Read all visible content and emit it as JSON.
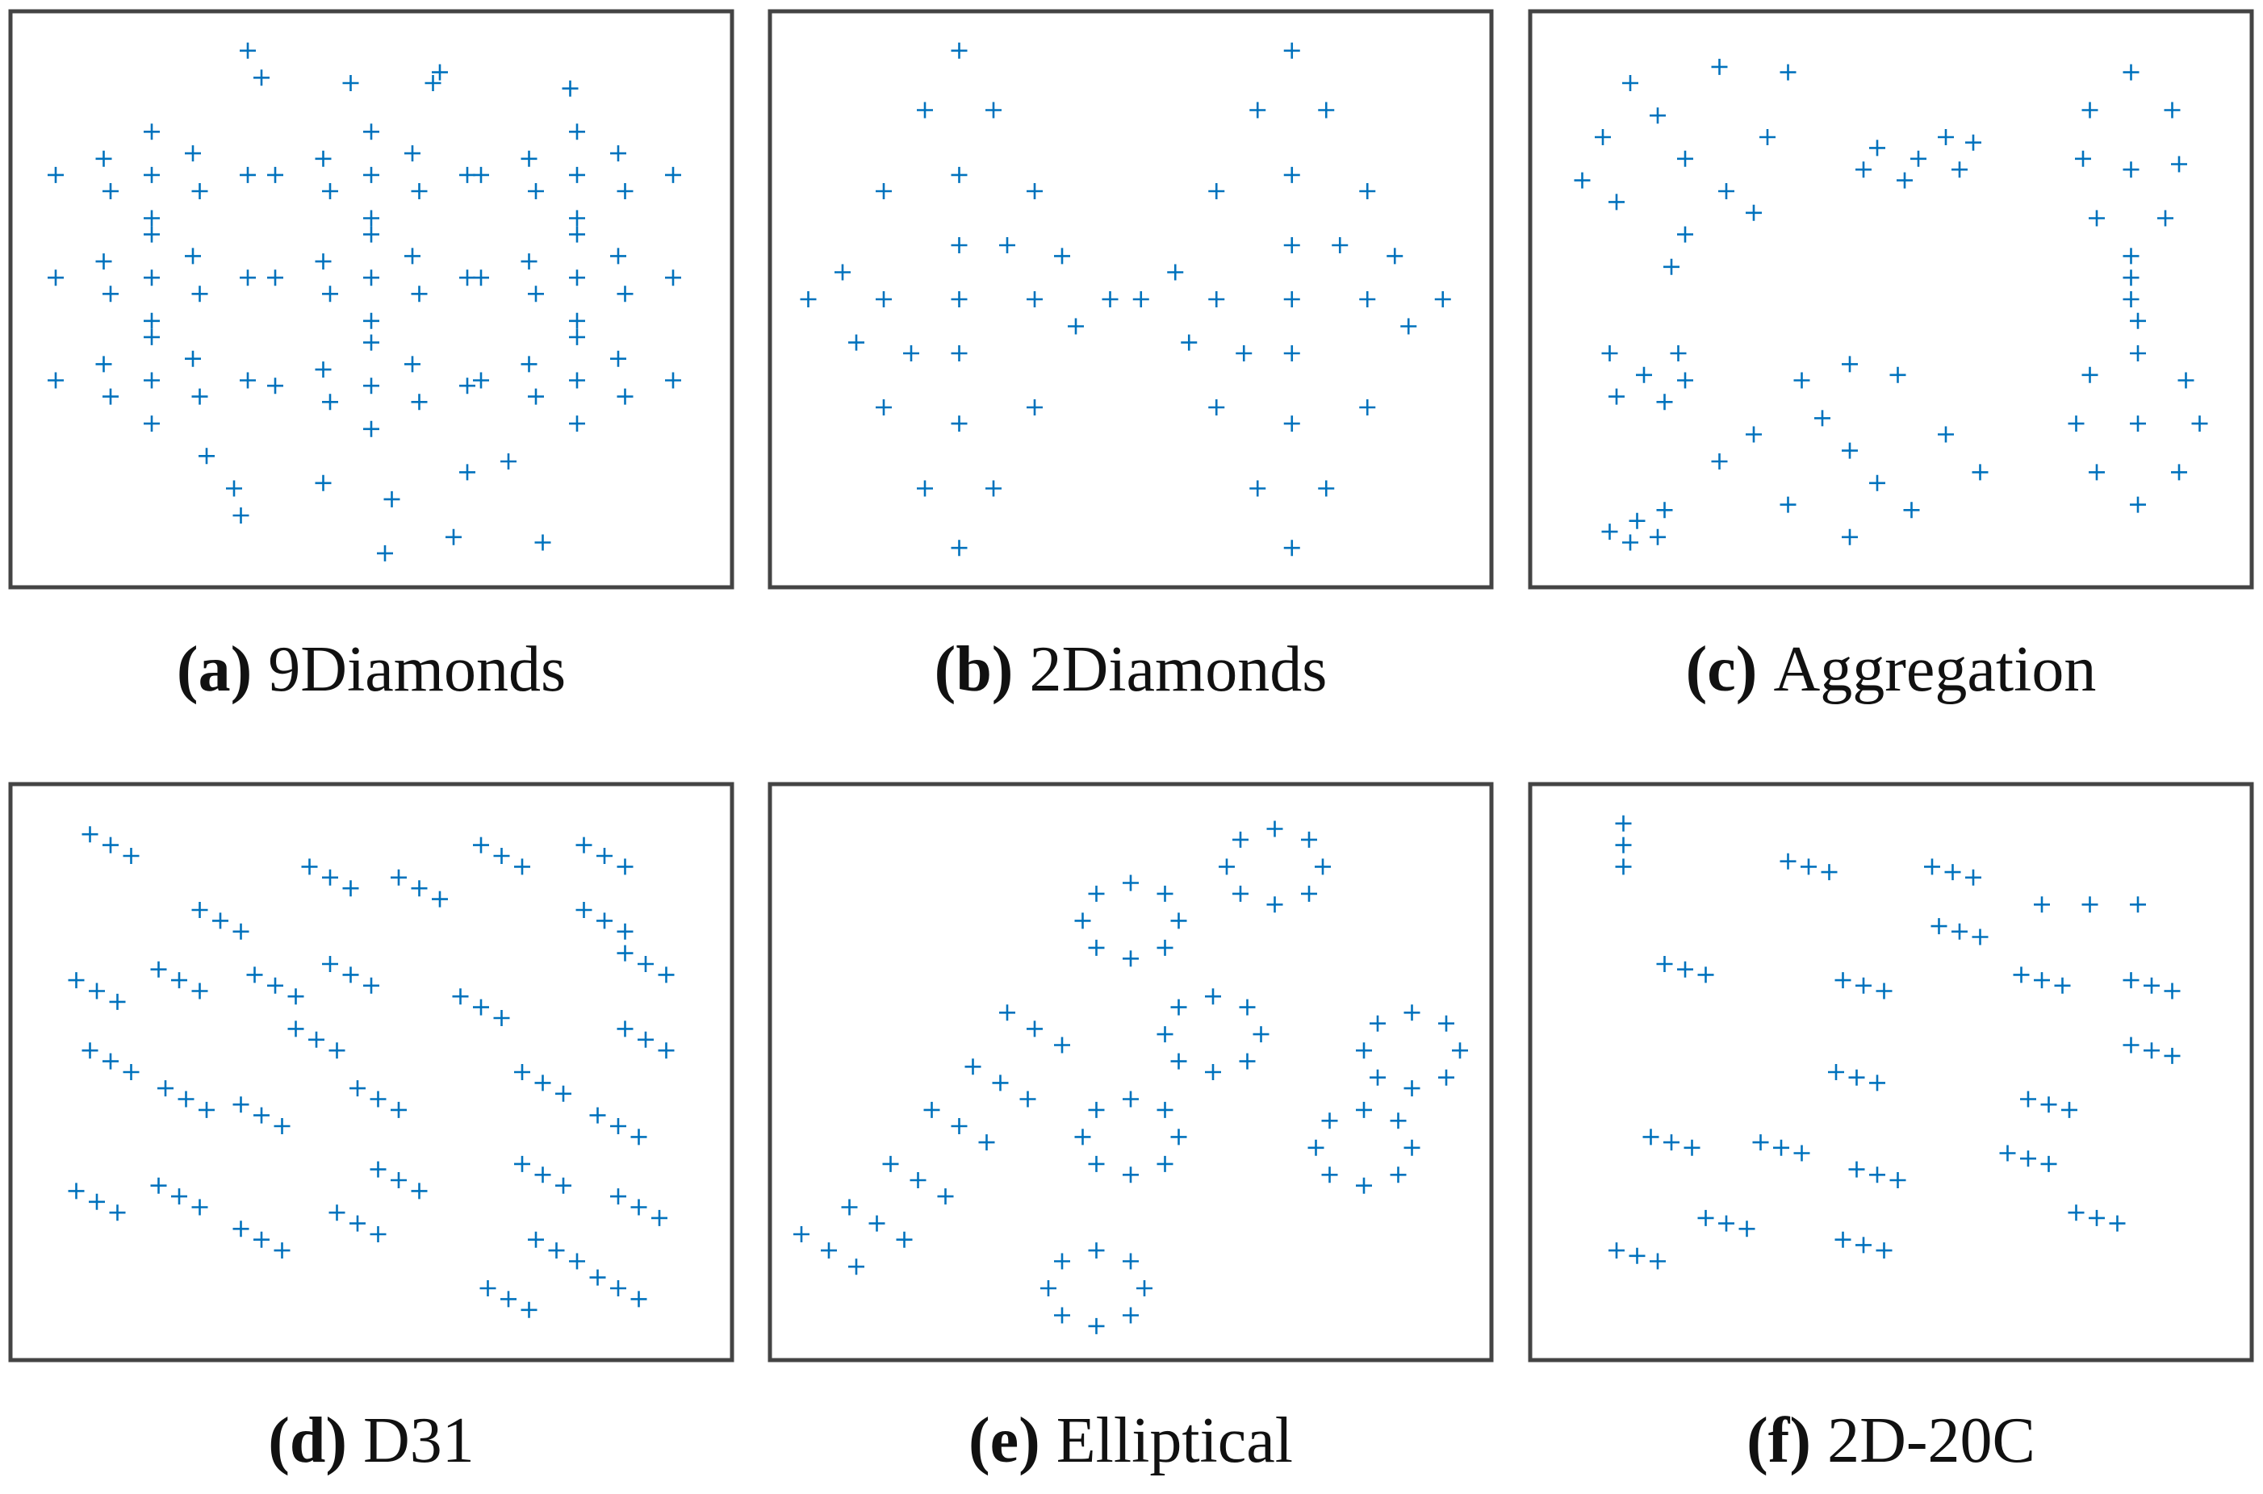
{
  "chart_data": [
    {
      "type": "scatter",
      "label": "(a)",
      "title": "9Diamonds",
      "color": "#0072bd",
      "xlim": [
        0,
        100
      ],
      "ylim": [
        0,
        100
      ],
      "x": [
        18,
        4,
        32,
        18,
        18,
        11,
        25,
        12,
        24,
        50,
        36,
        64,
        50,
        50,
        43,
        57,
        44,
        56,
        80,
        66,
        94,
        80,
        80,
        73,
        87,
        74,
        86,
        18,
        4,
        32,
        18,
        18,
        11,
        25,
        12,
        24,
        50,
        36,
        64,
        50,
        50,
        43,
        57,
        44,
        56,
        80,
        66,
        94,
        80,
        80,
        73,
        87,
        74,
        86,
        18,
        4,
        32,
        18,
        18,
        11,
        25,
        12,
        24,
        50,
        36,
        64,
        50,
        50,
        43,
        57,
        44,
        56,
        80,
        66,
        94,
        80,
        80,
        73,
        87,
        74,
        86,
        32,
        34,
        47,
        59,
        60,
        79,
        26,
        30,
        43,
        53,
        64,
        70,
        62,
        52,
        75,
        31
      ],
      "values": [
        73,
        73,
        73,
        81,
        65,
        76,
        70,
        70,
        77,
        73,
        73,
        73,
        81,
        65,
        76,
        70,
        70,
        77,
        73,
        73,
        73,
        81,
        65,
        76,
        70,
        70,
        77,
        54,
        54,
        54,
        62,
        46,
        57,
        51,
        51,
        58,
        54,
        54,
        54,
        62,
        46,
        57,
        51,
        51,
        58,
        54,
        54,
        54,
        62,
        46,
        57,
        51,
        51,
        58,
        35,
        35,
        35,
        43,
        27,
        38,
        32,
        32,
        39,
        34,
        34,
        34,
        42,
        26,
        37,
        31,
        31,
        38,
        35,
        35,
        35,
        43,
        27,
        38,
        32,
        32,
        39,
        96,
        91,
        90,
        90,
        92,
        89,
        21,
        15,
        16,
        13,
        18,
        20,
        6,
        3,
        5,
        10
      ]
    },
    {
      "type": "scatter",
      "label": "(b)",
      "title": "2Diamonds",
      "color": "#0072bd",
      "xlim": [
        0,
        100
      ],
      "ylim": [
        0,
        100
      ],
      "x": [
        25,
        3,
        47,
        25,
        25,
        14,
        36,
        25,
        25,
        14,
        36,
        14,
        36,
        20,
        30,
        20,
        30,
        8,
        42,
        18,
        32,
        25,
        25,
        10,
        40,
        73.5,
        51.5,
        95.5,
        73.5,
        73.5,
        62.5,
        84.5,
        73.5,
        73.5,
        62.5,
        84.5,
        62.5,
        84.5,
        68.5,
        78.5,
        68.5,
        78.5,
        56.5,
        90.5,
        66.5,
        80.5,
        73.5,
        73.5,
        58.5,
        88.5
      ],
      "values": [
        50,
        50,
        50,
        96,
        4,
        50,
        50,
        73,
        27,
        70,
        70,
        30,
        30,
        85,
        85,
        15,
        15,
        55,
        45,
        40,
        60,
        60,
        40,
        42,
        58,
        50,
        50,
        50,
        96,
        4,
        50,
        50,
        73,
        27,
        70,
        70,
        30,
        30,
        85,
        85,
        15,
        15,
        55,
        45,
        40,
        60,
        60,
        40,
        42,
        58
      ]
    },
    {
      "type": "scatter",
      "label": "(c)",
      "title": "Aggregation",
      "color": "#0072bd",
      "xlim": [
        0,
        100
      ],
      "ylim": [
        0,
        100
      ],
      "x": [
        20,
        8,
        32,
        12,
        25,
        10,
        20,
        30,
        16,
        26,
        35,
        18,
        5,
        54,
        48,
        60,
        52,
        58,
        46,
        62,
        85,
        79,
        91,
        80,
        90,
        85,
        85,
        78,
        92,
        85,
        86,
        85,
        86,
        79,
        93,
        80,
        92,
        86,
        86,
        77,
        95,
        14,
        9,
        19,
        10,
        17,
        20,
        44,
        30,
        58,
        37,
        51,
        35,
        53,
        44,
        44,
        25,
        63,
        40,
        48,
        13,
        9,
        17,
        12,
        16
      ],
      "values": [
        76,
        80,
        80,
        90,
        93,
        68,
        62,
        66,
        84,
        70,
        92,
        56,
        72,
        76,
        78,
        74,
        72,
        80,
        74,
        79,
        74,
        85,
        85,
        65,
        65,
        92,
        58,
        76,
        75,
        50,
        46,
        54,
        27,
        36,
        35,
        18,
        18,
        40,
        12,
        27,
        27,
        36,
        40,
        40,
        32,
        31,
        35,
        22,
        25,
        25,
        35,
        36,
        12,
        11,
        6,
        38,
        20,
        18,
        28,
        16,
        9,
        7,
        11,
        5,
        6
      ]
    },
    {
      "type": "scatter",
      "label": "(d)",
      "title": "D31",
      "color": "#0072bd",
      "xlim": [
        0,
        100
      ],
      "ylim": [
        0,
        100
      ],
      "x": [
        12,
        9,
        15,
        44,
        41,
        47,
        57,
        54,
        60,
        69,
        66,
        72,
        84,
        81,
        87,
        28,
        25,
        31,
        84,
        81,
        87,
        90,
        87,
        93,
        10,
        7,
        13,
        22,
        19,
        25,
        36,
        33,
        39,
        47,
        44,
        50,
        66,
        63,
        69,
        42,
        39,
        45,
        12,
        9,
        15,
        23,
        20,
        26,
        34,
        31,
        37,
        51,
        48,
        54,
        90,
        87,
        93,
        75,
        72,
        78,
        86,
        83,
        89,
        10,
        7,
        13,
        22,
        19,
        25,
        34,
        31,
        37,
        48,
        45,
        51,
        54,
        51,
        57,
        75,
        72,
        78,
        89,
        86,
        92,
        77,
        74,
        80,
        70,
        67,
        73,
        86,
        83,
        89
      ],
      "values": [
        92,
        94,
        90,
        86,
        88,
        84,
        84,
        86,
        82,
        90,
        92,
        88,
        90,
        92,
        88,
        78,
        80,
        76,
        78,
        80,
        76,
        70,
        72,
        68,
        65,
        67,
        63,
        67,
        69,
        65,
        66,
        68,
        64,
        68,
        70,
        66,
        62,
        64,
        60,
        56,
        58,
        54,
        52,
        54,
        50,
        45,
        47,
        43,
        42,
        44,
        40,
        45,
        47,
        43,
        56,
        58,
        54,
        48,
        50,
        46,
        40,
        42,
        38,
        26,
        28,
        24,
        27,
        29,
        25,
        19,
        21,
        17,
        22,
        24,
        20,
        30,
        32,
        28,
        31,
        33,
        29,
        25,
        27,
        23,
        17,
        19,
        15,
        8,
        10,
        6,
        10,
        12,
        8
      ]
    },
    {
      "type": "scatter",
      "label": "(e)",
      "title": "Elliptical",
      "color": "#0072bd",
      "xlim": [
        0,
        100
      ],
      "ylim": [
        0,
        100
      ],
      "x": [
        78,
        64,
        71,
        71,
        76,
        66,
        76,
        66,
        57,
        43,
        50,
        50,
        55,
        45,
        55,
        45,
        69,
        55,
        62,
        62,
        67,
        57,
        67,
        57,
        57,
        43,
        50,
        50,
        55,
        45,
        55,
        45,
        52,
        38,
        45,
        45,
        50,
        40,
        50,
        40,
        91,
        77,
        84,
        84,
        89,
        79,
        89,
        79,
        98,
        84,
        91,
        91,
        96,
        86,
        96,
        86,
        6,
        2,
        10,
        13,
        9,
        17,
        19,
        15,
        23,
        25,
        21,
        29,
        31,
        27,
        35,
        36,
        32,
        40
      ],
      "values": [
        88,
        88,
        95,
        81,
        93,
        83,
        83,
        93,
        78,
        78,
        85,
        71,
        83,
        73,
        73,
        83,
        57,
        57,
        64,
        50,
        62,
        52,
        52,
        62,
        38,
        38,
        45,
        31,
        43,
        33,
        33,
        43,
        10,
        10,
        17,
        3,
        15,
        5,
        5,
        15,
        36,
        36,
        43,
        29,
        41,
        31,
        31,
        41,
        54,
        54,
        61,
        47,
        59,
        49,
        49,
        59,
        17,
        20,
        14,
        22,
        25,
        19,
        30,
        33,
        27,
        40,
        43,
        37,
        48,
        51,
        45,
        58,
        61,
        55
      ]
    },
    {
      "type": "scatter",
      "label": "(f)",
      "title": "2D-20C",
      "color": "#0072bd",
      "xlim": [
        0,
        100
      ],
      "ylim": [
        0,
        100
      ],
      "x": [
        11,
        11,
        11,
        38,
        35,
        41,
        59,
        56,
        62,
        72,
        79,
        86,
        20,
        17,
        23,
        60,
        57,
        63,
        46,
        43,
        49,
        72,
        69,
        75,
        88,
        85,
        91,
        88,
        85,
        91,
        45,
        42,
        48,
        73,
        70,
        76,
        18,
        15,
        21,
        34,
        31,
        37,
        48,
        45,
        51,
        46,
        43,
        49,
        70,
        67,
        73,
        80,
        77,
        83,
        13,
        10,
        16,
        26,
        23,
        29
      ],
      "values": [
        92,
        96,
        88,
        88,
        89,
        87,
        87,
        88,
        86,
        81,
        81,
        81,
        69,
        70,
        68,
        76,
        77,
        75,
        66,
        67,
        65,
        67,
        68,
        66,
        66,
        67,
        65,
        54,
        55,
        53,
        49,
        50,
        48,
        44,
        45,
        43,
        37,
        38,
        36,
        36,
        37,
        35,
        31,
        32,
        30,
        18,
        19,
        17,
        34,
        35,
        33,
        23,
        24,
        22,
        16,
        17,
        15,
        22,
        23,
        21
      ]
    }
  ]
}
